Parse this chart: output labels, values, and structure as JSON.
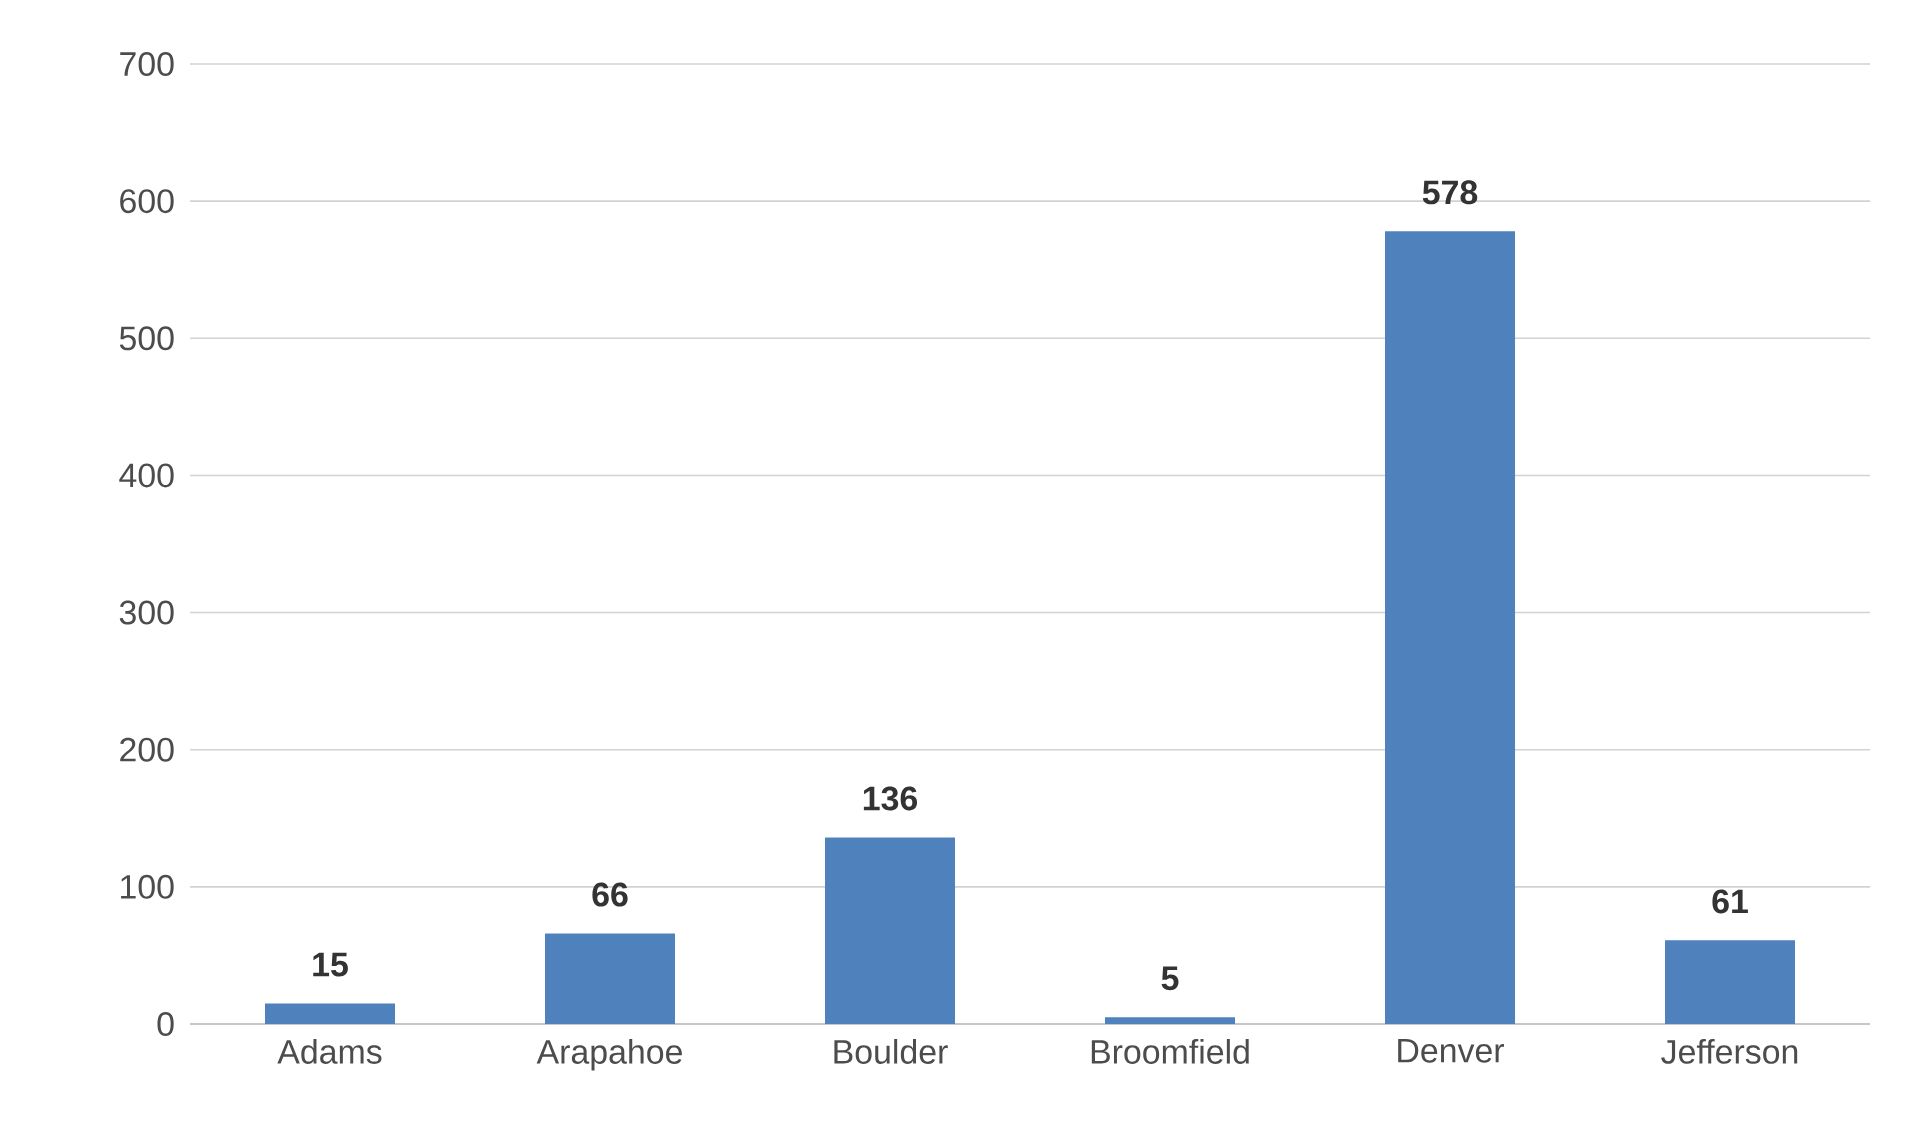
{
  "chart_data": {
    "type": "bar",
    "categories": [
      "Adams",
      "Arapahoe",
      "Boulder",
      "Broomfield",
      "Denver",
      "Jefferson"
    ],
    "values": [
      15,
      66,
      136,
      5,
      578,
      61
    ],
    "color": "#4f81bd",
    "ylim": [
      0,
      700
    ],
    "yticks": [
      0,
      100,
      200,
      300,
      400,
      500,
      600,
      700
    ],
    "grid": "y",
    "data_labels": true
  }
}
